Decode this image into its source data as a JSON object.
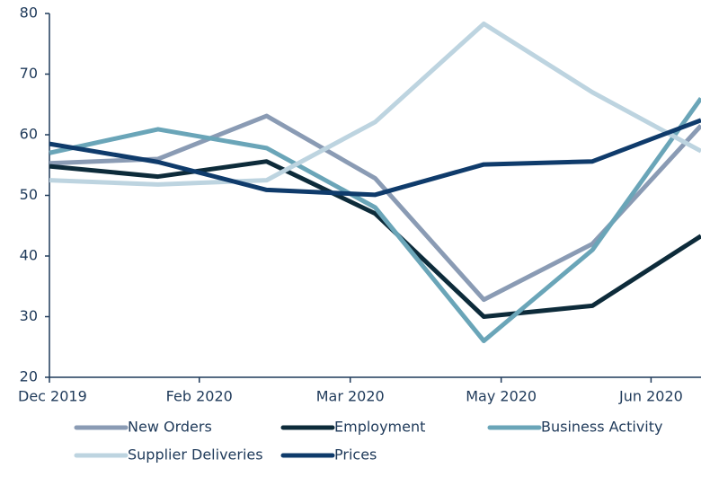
{
  "chart_data": {
    "type": "line",
    "x": [
      0,
      1,
      2,
      3,
      4,
      5,
      6
    ],
    "xlim": [
      0,
      6
    ],
    "xticks": [
      {
        "value": 0,
        "label": "Dec 2019"
      },
      {
        "value": 1.38,
        "label": "Feb 2020"
      },
      {
        "value": 2.77,
        "label": "Mar 2020"
      },
      {
        "value": 4.16,
        "label": "May 2020"
      },
      {
        "value": 5.54,
        "label": "Jun 2020"
      }
    ],
    "ylim": [
      20,
      80
    ],
    "yticks": [
      20,
      30,
      40,
      50,
      60,
      70,
      80
    ],
    "series": [
      {
        "name": "New Orders",
        "color": "#8a9bb4",
        "values": [
          55.3,
          56,
          63.1,
          52.8,
          32.8,
          42,
          61.5
        ]
      },
      {
        "name": "Employment",
        "color": "#0d2b3a",
        "values": [
          54.8,
          53.1,
          55.6,
          47,
          30,
          31.8,
          43.3
        ]
      },
      {
        "name": "Business Activity",
        "color": "#6aa5b8",
        "values": [
          57,
          60.9,
          57.8,
          48,
          26,
          41,
          66
        ]
      },
      {
        "name": "Supplier Deliveries",
        "color": "#bdd4e0",
        "values": [
          52.5,
          51.8,
          52.5,
          62.1,
          78.3,
          67,
          57.3
        ]
      },
      {
        "name": "Prices",
        "color": "#0f3b6b",
        "values": [
          58.5,
          55.5,
          50.9,
          50.1,
          55.1,
          55.6,
          62.4
        ]
      }
    ]
  }
}
